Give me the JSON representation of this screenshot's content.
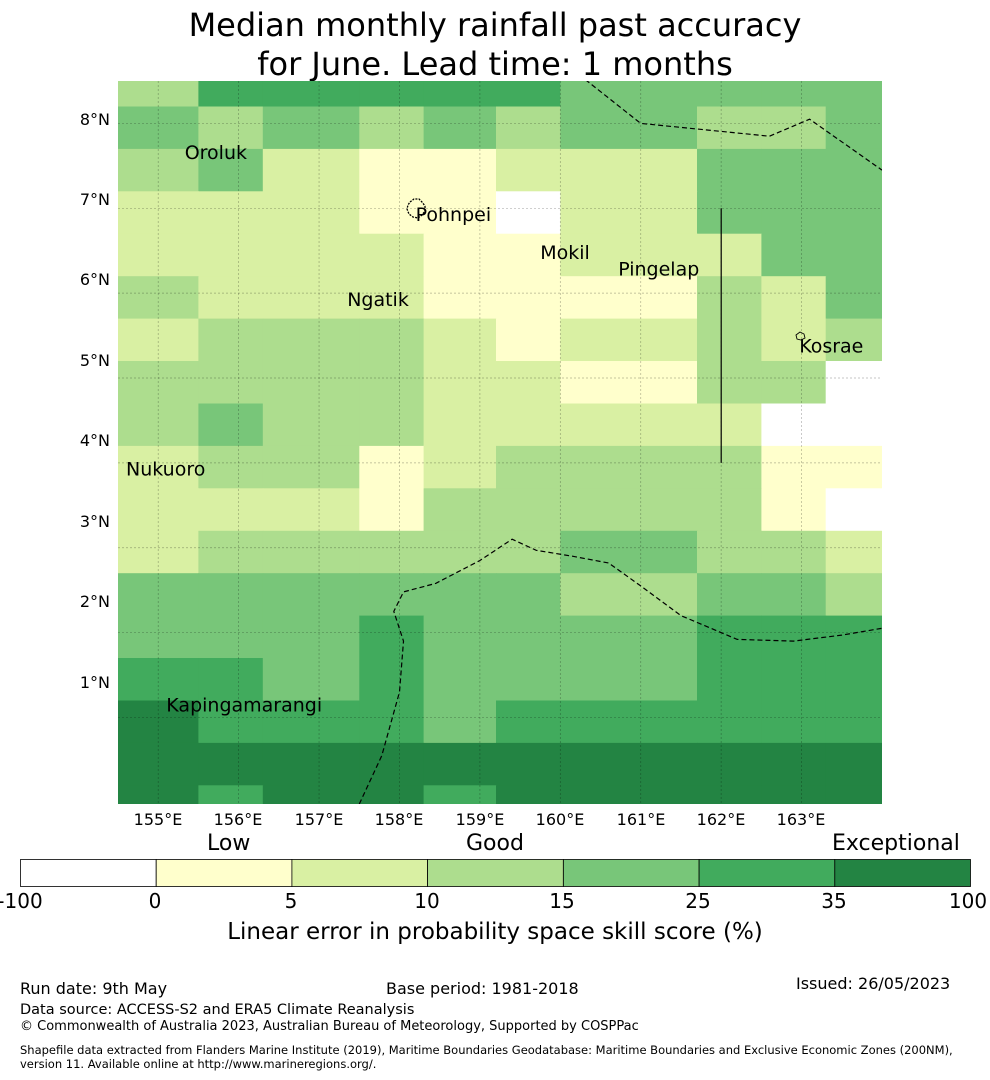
{
  "title_line1": "Median monthly rainfall past accuracy",
  "title_line2": "for June. Lead time: 1 months",
  "map": {
    "lon_range": [
      154.5,
      164.0
    ],
    "lat_range": [
      -0.02,
      8.5
    ],
    "lat_ticks": [
      {
        "value": 8,
        "label": "8°N"
      },
      {
        "value": 7,
        "label": "7°N"
      },
      {
        "value": 6,
        "label": "6°N"
      },
      {
        "value": 5,
        "label": "5°N"
      },
      {
        "value": 4,
        "label": "4°N"
      },
      {
        "value": 3,
        "label": "3°N"
      },
      {
        "value": 2,
        "label": "2°N"
      },
      {
        "value": 1,
        "label": "1°N"
      }
    ],
    "lon_ticks": [
      {
        "value": 155,
        "label": "155°E"
      },
      {
        "value": 156,
        "label": "156°E"
      },
      {
        "value": 157,
        "label": "157°E"
      },
      {
        "value": 158,
        "label": "158°E"
      },
      {
        "value": 159,
        "label": "159°E"
      },
      {
        "value": 160,
        "label": "160°E"
      },
      {
        "value": 161,
        "label": "161°E"
      },
      {
        "value": 162,
        "label": "162°E"
      },
      {
        "value": 163,
        "label": "163°E"
      }
    ],
    "grid_lons": [
      154.5,
      155.5,
      156.3,
      157.5,
      158.3,
      159.2,
      160.0,
      161.7,
      162.5,
      163.3,
      164.0
    ],
    "grid_lats": [
      8.5,
      8.2,
      7.7,
      7.2,
      6.7,
      6.2,
      5.7,
      5.2,
      4.7,
      4.2,
      3.7,
      3.2,
      2.7,
      2.2,
      1.7,
      1.2,
      0.7,
      0.2,
      -0.02
    ],
    "cells": [
      "4666665555",
      "5454545445",
      "4532233555",
      "3332213555",
      "3333223355",
      "4333222435",
      "3444323434",
      "4444332441",
      "4544333311",
      "3442344422",
      "3332444421",
      "3444445443",
      "5555554554",
      "5556555666",
      "6656555666",
      "7666566666",
      "7777777777",
      "7677677777"
    ],
    "places": [
      {
        "name": "Oroluk",
        "lon": 155.33,
        "lat": 7.58
      },
      {
        "name": "Pohnpei",
        "lon": 158.2,
        "lat": 6.85
      },
      {
        "name": "Mokil",
        "lon": 159.75,
        "lat": 6.4
      },
      {
        "name": "Pingelap",
        "lon": 160.72,
        "lat": 6.21
      },
      {
        "name": "Ngatik",
        "lon": 157.35,
        "lat": 5.85
      },
      {
        "name": "Kosrae",
        "lon": 162.97,
        "lat": 5.3
      },
      {
        "name": "Nukuoro",
        "lon": 154.6,
        "lat": 3.85
      },
      {
        "name": "Kapingamarangi",
        "lon": 155.1,
        "lat": 1.07
      }
    ],
    "boundaries": [
      [
        [
          160.0,
          8.75
        ],
        [
          161.0,
          8.0
        ],
        [
          162.6,
          7.85
        ],
        [
          163.1,
          8.05
        ],
        [
          164.0,
          7.45
        ]
      ],
      [
        [
          162.0,
          7.0
        ],
        [
          162.0,
          4.0
        ]
      ],
      [
        [
          157.5,
          -0.02
        ],
        [
          157.78,
          0.55
        ],
        [
          158.0,
          1.3
        ],
        [
          158.05,
          1.9
        ],
        [
          157.93,
          2.25
        ],
        [
          158.05,
          2.48
        ],
        [
          158.45,
          2.58
        ],
        [
          159.0,
          2.85
        ],
        [
          159.4,
          3.1
        ],
        [
          159.7,
          2.97
        ],
        [
          160.15,
          2.9
        ],
        [
          160.6,
          2.82
        ],
        [
          161.0,
          2.55
        ],
        [
          161.5,
          2.2
        ],
        [
          162.2,
          1.92
        ],
        [
          162.9,
          1.9
        ],
        [
          163.5,
          1.97
        ],
        [
          164.0,
          2.05
        ]
      ]
    ]
  },
  "legend": {
    "cat_low": "Low",
    "cat_good": "Good",
    "cat_exceptional": "Exceptional",
    "ticks": [
      "-100",
      "0",
      "5",
      "10",
      "15",
      "25",
      "35",
      "100"
    ],
    "colors": [
      "#ffffff",
      "#ffffcc",
      "#d9f0a3",
      "#addd8e",
      "#78c679",
      "#41ab5d",
      "#238443"
    ],
    "title": "Linear error in probability space skill score (%)"
  },
  "footer": {
    "run_date": "Run date: 9th May",
    "base_period": "Base period: 1981-2018",
    "issued": "Issued: 26/05/2023",
    "data_source": "Data source: ACCESS-S2 and ERA5 Climate Reanalysis",
    "copyright": "© Commonwealth of Australia 2023, Australian Bureau of Meteorology, Supported by COSPPac",
    "shapefile": "Shapefile data extracted from Flanders Marine Institute (2019), Maritime Boundaries Geodatabase: Maritime Boundaries and Exclusive Economic Zones (200NM), version 11. Available online at http://www.marineregions.org/."
  }
}
